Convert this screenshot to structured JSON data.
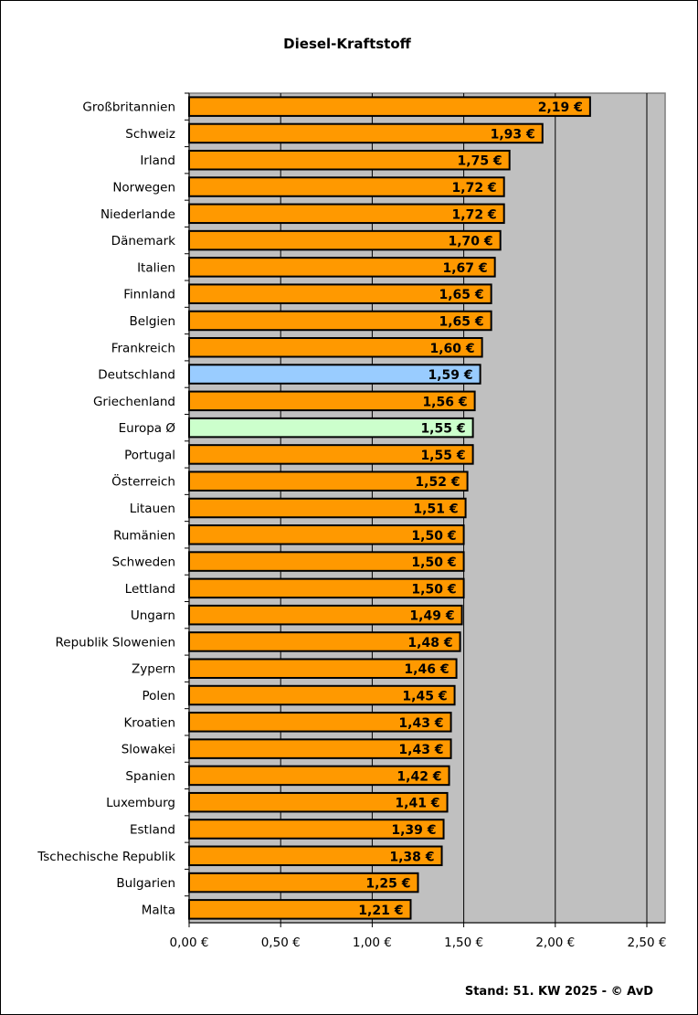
{
  "chart_data": {
    "type": "bar",
    "orientation": "horizontal",
    "title": "Diesel-Kraftstoff",
    "footer": "Stand: 51. KW 2025 - © AvD",
    "xlim": [
      0,
      2.6
    ],
    "x_ticks": [
      "0,00 €",
      "0,50 €",
      "1,00 €",
      "1,50 €",
      "2,00 €",
      "2,50 €"
    ],
    "grid": "vertical",
    "colors": {
      "default": "#FF9900",
      "Deutschland": "#99CCFF",
      "Europa Ø": "#CCFFCC",
      "plot_background": "#C0C0C0"
    },
    "categories": [
      "Großbritannien",
      "Schweiz",
      "Irland",
      "Norwegen",
      "Niederlande",
      "Dänemark",
      "Italien",
      "Finnland",
      "Belgien",
      "Frankreich",
      "Deutschland",
      "Griechenland",
      "Europa Ø",
      "Portugal",
      "Österreich",
      "Litauen",
      "Rumänien",
      "Schweden",
      "Lettland",
      "Ungarn",
      "Republik Slowenien",
      "Zypern",
      "Polen",
      "Kroatien",
      "Slowakei",
      "Spanien",
      "Luxemburg",
      "Estland",
      "Tschechische Republik",
      "Bulgarien",
      "Malta"
    ],
    "values": [
      2.19,
      1.93,
      1.75,
      1.72,
      1.72,
      1.7,
      1.67,
      1.65,
      1.65,
      1.6,
      1.59,
      1.56,
      1.55,
      1.55,
      1.52,
      1.51,
      1.5,
      1.5,
      1.5,
      1.49,
      1.48,
      1.46,
      1.45,
      1.43,
      1.43,
      1.42,
      1.41,
      1.39,
      1.38,
      1.25,
      1.21
    ],
    "labels": [
      "2,19 €",
      "1,93 €",
      "1,75 €",
      "1,72 €",
      "1,72 €",
      "1,70 €",
      "1,67 €",
      "1,65 €",
      "1,65 €",
      "1,60 €",
      "1,59 €",
      "1,56 €",
      "1,55 €",
      "1,55 €",
      "1,52 €",
      "1,51 €",
      "1,50 €",
      "1,50 €",
      "1,50 €",
      "1,49 €",
      "1,48 €",
      "1,46 €",
      "1,45 €",
      "1,43 €",
      "1,43 €",
      "1,42 €",
      "1,41 €",
      "1,39 €",
      "1,38 €",
      "1,25 €",
      "1,21 €"
    ]
  }
}
